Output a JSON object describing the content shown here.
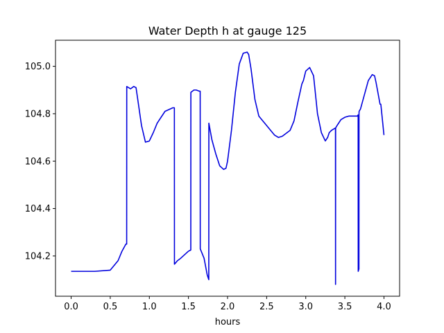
{
  "chart_data": {
    "type": "line",
    "title": "Water Depth h at gauge 125",
    "xlabel": "hours",
    "ylabel": "",
    "xlim": [
      -0.2,
      4.2
    ],
    "ylim": [
      104.03,
      105.11
    ],
    "xticks": [
      0.0,
      0.5,
      1.0,
      1.5,
      2.0,
      2.5,
      3.0,
      3.5,
      4.0
    ],
    "xtick_labels": [
      "0.0",
      "0.5",
      "1.0",
      "1.5",
      "2.0",
      "2.5",
      "3.0",
      "3.5",
      "4.0"
    ],
    "yticks": [
      104.2,
      104.4,
      104.6,
      104.8,
      105.0
    ],
    "ytick_labels": [
      "104.2",
      "104.4",
      "104.6",
      "104.8",
      "105.0"
    ],
    "grid": false,
    "colors": {
      "line": "#0000dd",
      "axis": "#000000"
    },
    "series": [
      {
        "name": "",
        "x": [
          0.0,
          0.3,
          0.5,
          0.6,
          0.65,
          0.7,
          0.71,
          0.711,
          0.76,
          0.8,
          0.83,
          0.9,
          0.95,
          1.0,
          1.05,
          1.1,
          1.2,
          1.3,
          1.32,
          1.321,
          1.36,
          1.4,
          1.5,
          1.53,
          1.531,
          1.57,
          1.6,
          1.64,
          1.65,
          1.651,
          1.7,
          1.74,
          1.76,
          1.761,
          1.8,
          1.85,
          1.9,
          1.95,
          1.98,
          2.0,
          2.05,
          2.1,
          2.15,
          2.2,
          2.25,
          2.27,
          2.3,
          2.35,
          2.4,
          2.5,
          2.6,
          2.65,
          2.7,
          2.8,
          2.85,
          2.9,
          2.95,
          2.97,
          3.0,
          3.05,
          3.1,
          3.15,
          3.2,
          3.25,
          3.28,
          3.3,
          3.33,
          3.38,
          3.381,
          3.382,
          3.4,
          3.45,
          3.5,
          3.55,
          3.6,
          3.66,
          3.67,
          3.671,
          3.68,
          3.681,
          3.682,
          3.7,
          3.75,
          3.8,
          3.85,
          3.88,
          3.9,
          3.95,
          3.96,
          4.0
        ],
        "y": [
          104.135,
          104.135,
          104.14,
          104.18,
          104.22,
          104.25,
          104.25,
          104.915,
          104.905,
          104.915,
          104.91,
          104.75,
          104.68,
          104.685,
          104.72,
          104.76,
          104.81,
          104.825,
          104.825,
          104.165,
          104.18,
          104.19,
          104.22,
          104.225,
          104.89,
          104.9,
          104.9,
          104.895,
          104.895,
          104.23,
          104.19,
          104.12,
          104.1,
          104.76,
          104.69,
          104.63,
          104.58,
          104.565,
          104.57,
          104.6,
          104.73,
          104.89,
          105.01,
          105.055,
          105.06,
          105.05,
          104.99,
          104.86,
          104.79,
          104.75,
          104.71,
          104.7,
          104.705,
          104.73,
          104.77,
          104.85,
          104.925,
          104.94,
          104.98,
          104.995,
          104.96,
          104.8,
          104.72,
          104.685,
          104.7,
          104.72,
          104.73,
          104.74,
          104.08,
          104.74,
          104.75,
          104.775,
          104.785,
          104.79,
          104.79,
          104.79,
          104.795,
          104.135,
          104.145,
          104.8,
          104.81,
          104.82,
          104.88,
          104.94,
          104.965,
          104.96,
          104.93,
          104.84,
          104.84,
          104.71
        ]
      }
    ]
  }
}
